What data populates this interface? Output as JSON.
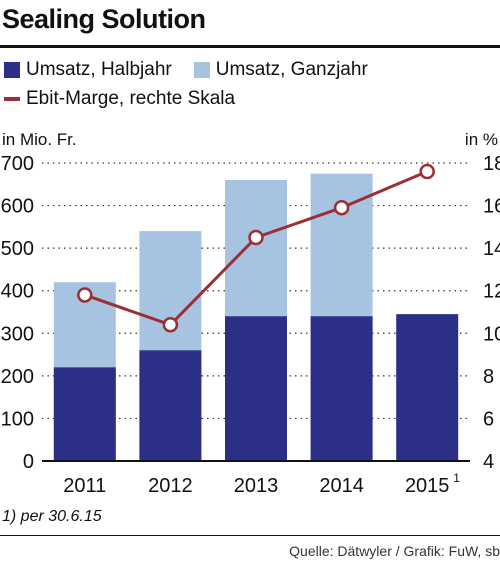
{
  "title": "Sealing Solution",
  "legend": {
    "halbjahr": "Umsatz, Halbjahr",
    "ganzjahr": "Umsatz, Ganzjahr",
    "marge": "Ebit-Marge, rechte Skala"
  },
  "colors": {
    "halbjahr": "#2b2f85",
    "ganzjahr": "#a6c3e2",
    "marge": "#9b2f34"
  },
  "footnote": "1) per 30.6.15",
  "source": "Quelle: Dätwyler / Grafik: FuW, sb",
  "chart_data": {
    "type": "bar",
    "categories": [
      "2011",
      "2012",
      "2013",
      "2014",
      "2015"
    ],
    "category_superscripts": [
      "",
      "",
      "",
      "",
      "1"
    ],
    "ylabel_left": "in Mio. Fr.",
    "ylabel_right": "in %",
    "ylim_left": [
      0,
      700
    ],
    "ylim_right": [
      4,
      18
    ],
    "yticks_left": [
      0,
      100,
      200,
      300,
      400,
      500,
      600,
      700
    ],
    "yticks_right": [
      4,
      6,
      8,
      10,
      12,
      14,
      16,
      18
    ],
    "grid": "dotted horizontal",
    "series": [
      {
        "name": "Umsatz, Halbjahr",
        "kind": "bar",
        "axis": "left",
        "values": [
          220,
          260,
          340,
          340,
          345
        ]
      },
      {
        "name": "Umsatz, Ganzjahr",
        "kind": "bar",
        "axis": "left",
        "values": [
          420,
          540,
          660,
          675,
          null
        ]
      },
      {
        "name": "Ebit-Marge, rechte Skala",
        "kind": "line",
        "axis": "right",
        "values": [
          11.8,
          10.4,
          14.5,
          15.9,
          17.6
        ]
      }
    ]
  }
}
